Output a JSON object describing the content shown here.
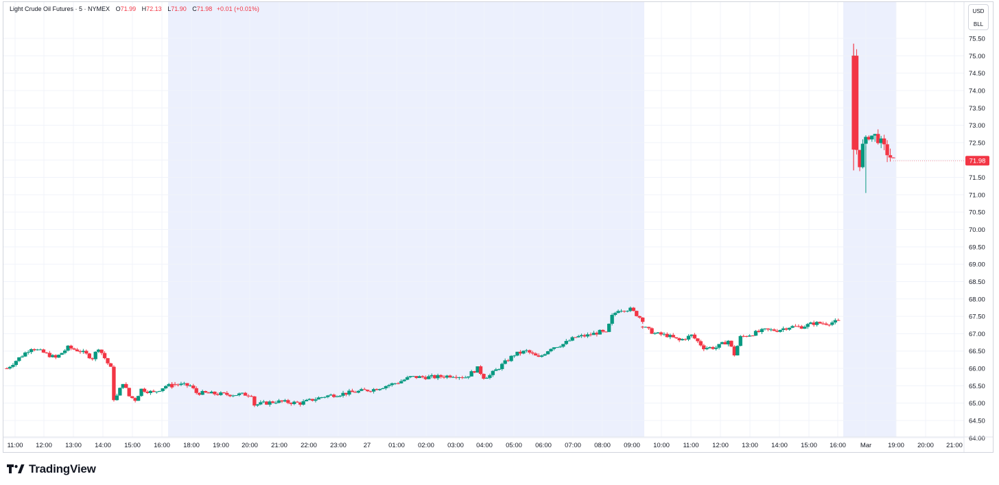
{
  "legend": {
    "symbol": "Light Crude Oil Futures · 5 · NYMEX",
    "open_label": "O",
    "open": "71.99",
    "high_label": "H",
    "high": "72.13",
    "low_label": "L",
    "low": "71.90",
    "close_label": "C",
    "close": "71.98",
    "change": "+0.01 (+0.01%)"
  },
  "currency": "USD",
  "unit": "BLL",
  "price_tag": "71.98",
  "brand": "TradingView",
  "colors": {
    "up": "#089981",
    "down": "#f23645",
    "session_bg": "#ecf0fd",
    "grid": "#f0f3fa"
  },
  "chart_data": {
    "type": "candlestick",
    "title": "Light Crude Oil Futures · 5 · NYMEX",
    "ylim": [
      63.8,
      75.9
    ],
    "y_ticks": [
      "64.00",
      "64.50",
      "65.00",
      "65.50",
      "66.00",
      "66.50",
      "67.00",
      "67.50",
      "68.00",
      "68.50",
      "69.00",
      "69.50",
      "70.00",
      "70.50",
      "71.00",
      "71.50",
      "72.00",
      "72.50",
      "73.00",
      "73.50",
      "74.00",
      "74.50",
      "75.00",
      "75.50"
    ],
    "x_ticks": [
      "11:00",
      "12:00",
      "13:00",
      "14:00",
      "15:00",
      "16:00",
      "18:00",
      "19:00",
      "20:00",
      "21:00",
      "22:00",
      "23:00",
      "27",
      "01:00",
      "02:00",
      "03:00",
      "04:00",
      "05:00",
      "06:00",
      "07:00",
      "08:00",
      "09:00",
      "10:00",
      "11:00",
      "12:00",
      "13:00",
      "14:00",
      "15:00",
      "16:00",
      "Mar",
      "19:00",
      "20:00",
      "21:00"
    ],
    "last_price": 71.98,
    "grid": true,
    "series": [
      {
        "segment": "day1_regular",
        "points": [
          [
            0,
            66.0
          ],
          [
            4,
            66.6
          ],
          [
            8,
            66.3
          ],
          [
            10,
            66.6
          ],
          [
            12,
            66.5
          ],
          [
            14,
            66.3
          ],
          [
            15,
            66.6
          ],
          [
            16,
            66.3
          ],
          [
            17,
            66.0
          ],
          [
            17.3,
            65.1
          ],
          [
            18,
            65.2
          ],
          [
            19,
            65.6
          ],
          [
            20,
            65.2
          ],
          [
            21,
            65.1
          ],
          [
            22,
            65.4
          ],
          [
            24,
            65.3
          ],
          [
            26,
            65.5
          ],
          [
            27,
            65.5
          ]
        ]
      },
      {
        "segment": "overnight",
        "points": [
          [
            27,
            65.55
          ],
          [
            30,
            65.5
          ],
          [
            31,
            65.3
          ],
          [
            36,
            65.25
          ],
          [
            40,
            65.25
          ],
          [
            40.5,
            64.95
          ],
          [
            44,
            65.05
          ],
          [
            48,
            65.0
          ],
          [
            52,
            65.2
          ],
          [
            56,
            65.3
          ],
          [
            60,
            65.4
          ],
          [
            64,
            65.6
          ],
          [
            66,
            65.75
          ],
          [
            70,
            65.75
          ],
          [
            73,
            65.8
          ],
          [
            75,
            65.75
          ],
          [
            77,
            66.0
          ],
          [
            78,
            65.75
          ],
          [
            79,
            65.8
          ],
          [
            81,
            66.1
          ],
          [
            83,
            66.4
          ],
          [
            85,
            66.5
          ],
          [
            87,
            66.3
          ],
          [
            89,
            66.6
          ],
          [
            91,
            66.7
          ],
          [
            93,
            66.9
          ],
          [
            95,
            66.95
          ],
          [
            97,
            67.05
          ],
          [
            98,
            67.0
          ],
          [
            99,
            67.5
          ],
          [
            100,
            67.7
          ],
          [
            102,
            67.7
          ],
          [
            104,
            67.4
          ]
        ]
      },
      {
        "segment": "day2_regular",
        "points": [
          [
            104,
            67.2
          ],
          [
            106,
            67.0
          ],
          [
            108,
            66.95
          ],
          [
            110,
            66.8
          ],
          [
            112,
            66.95
          ],
          [
            114,
            66.6
          ],
          [
            116,
            66.6
          ],
          [
            118,
            66.8
          ],
          [
            119,
            66.4
          ],
          [
            120,
            66.9
          ],
          [
            122,
            67.0
          ],
          [
            124,
            67.1
          ],
          [
            126,
            67.1
          ],
          [
            128,
            67.2
          ],
          [
            130,
            67.2
          ],
          [
            132,
            67.3
          ],
          [
            134,
            67.3
          ],
          [
            136,
            67.35
          ]
        ]
      },
      {
        "segment": "day3_open",
        "points": [
          [
            138.5,
            75.0
          ],
          [
            139,
            72.3
          ],
          [
            139.5,
            71.9
          ],
          [
            140,
            72.4
          ],
          [
            141,
            72.7
          ],
          [
            142,
            72.7
          ],
          [
            143,
            72.5
          ],
          [
            144,
            72.2
          ],
          [
            145,
            71.98
          ]
        ]
      }
    ]
  }
}
